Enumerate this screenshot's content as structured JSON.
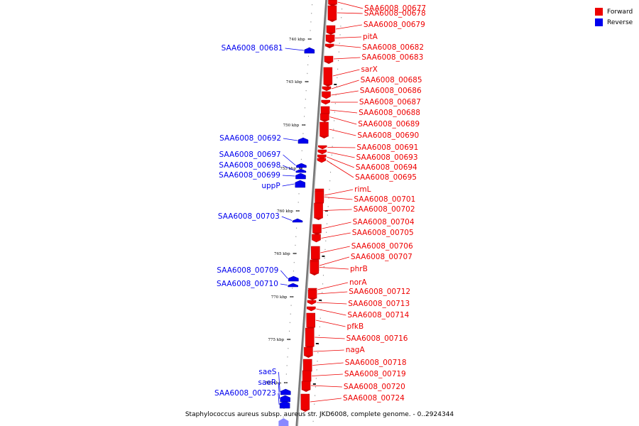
{
  "legend": {
    "items": [
      {
        "label": "Forward",
        "color": "#ee0000"
      },
      {
        "label": "Reverse",
        "color": "#0000ee"
      }
    ]
  },
  "caption": "Staphylococcus aureus subsp. aureus str. JKD6008, complete genome. - 0..2924344",
  "colors": {
    "forward": "#ee0000",
    "reverse": "#0000ee",
    "backbone": "#777777"
  },
  "ticks": [
    {
      "label": "740 kbp",
      "kb": 740
    },
    {
      "label": "745 kbp",
      "kb": 745
    },
    {
      "label": "750 kbp",
      "kb": 750
    },
    {
      "label": "755 kbp",
      "kb": 755
    },
    {
      "label": "760 kbp",
      "kb": 760
    },
    {
      "label": "765 kbp",
      "kb": 765
    },
    {
      "label": "770 kbp",
      "kb": 770
    },
    {
      "label": "775 kbp",
      "kb": 775
    },
    {
      "label": "780 kbp",
      "kb": 780
    }
  ],
  "forward_genes": [
    "SAA6008_00677",
    "SAA6008_00678",
    "SAA6008_00679",
    "pitA",
    "SAA6008_00682",
    "SAA6008_00683",
    "sarX",
    "SAA6008_00685",
    "SAA6008_00686",
    "SAA6008_00687",
    "SAA6008_00688",
    "SAA6008_00689",
    "SAA6008_00690",
    "SAA6008_00691",
    "SAA6008_00693",
    "SAA6008_00694",
    "SAA6008_00695",
    "rimL",
    "SAA6008_00701",
    "SAA6008_00702",
    "SAA6008_00704",
    "SAA6008_00705",
    "SAA6008_00706",
    "SAA6008_00707",
    "phrB",
    "norA",
    "SAA6008_00712",
    "SAA6008_00713",
    "SAA6008_00714",
    "pfkB",
    "SAA6008_00716",
    "nagA",
    "SAA6008_00718",
    "SAA6008_00719",
    "SAA6008_00720",
    "SAA6008_00724"
  ],
  "reverse_genes": [
    "SAA6008_00681",
    "SAA6008_00692",
    "SAA6008_00697",
    "SAA6008_00698",
    "SAA6008_00699",
    "uppP",
    "SAA6008_00703",
    "SAA6008_00709",
    "SAA6008_00710",
    "saeS",
    "saeR",
    "SAA6008_00723"
  ]
}
